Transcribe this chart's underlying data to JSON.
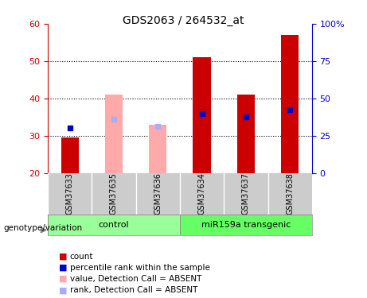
{
  "title": "GDS2063 / 264532_at",
  "samples": [
    "GSM37633",
    "GSM37635",
    "GSM37636",
    "GSM37634",
    "GSM37637",
    "GSM37638"
  ],
  "groups": [
    "control",
    "control",
    "control",
    "miR159a transgenic",
    "miR159a transgenic",
    "miR159a transgenic"
  ],
  "ylim_left": [
    20,
    60
  ],
  "ylim_right": [
    0,
    100
  ],
  "yticks_left": [
    20,
    30,
    40,
    50,
    60
  ],
  "yticks_right": [
    0,
    25,
    50,
    75,
    100
  ],
  "yticklabels_right": [
    "0",
    "25",
    "50",
    "75",
    "100%"
  ],
  "bar_bottom": 20,
  "count_values": [
    29.5,
    null,
    null,
    51.0,
    41.0,
    57.0
  ],
  "count_color": "#cc0000",
  "absent_value_values": [
    null,
    41.0,
    33.0,
    null,
    null,
    null
  ],
  "absent_value_color": "#ffaaaa",
  "percentile_values": [
    32.0,
    null,
    null,
    36.0,
    35.0,
    37.0
  ],
  "percentile_color": "#0000cc",
  "absent_rank_values": [
    null,
    34.5,
    32.5,
    null,
    null,
    null
  ],
  "absent_rank_color": "#aaaaff",
  "bar_width": 0.4,
  "group_colors": {
    "control": "#99ff99",
    "miR159a transgenic": "#66ff66"
  },
  "group_label": "genotype/variation",
  "legend_items": [
    {
      "label": "count",
      "color": "#cc0000"
    },
    {
      "label": "percentile rank within the sample",
      "color": "#0000cc"
    },
    {
      "label": "value, Detection Call = ABSENT",
      "color": "#ffaaaa"
    },
    {
      "label": "rank, Detection Call = ABSENT",
      "color": "#aaaaff"
    }
  ],
  "background_color": "#ffffff",
  "plot_bg_color": "#ffffff",
  "tick_area_bg": "#cccccc",
  "dotted_line_color": "#000000",
  "axis_color_left": "#cc0000",
  "axis_color_right": "#0000cc"
}
